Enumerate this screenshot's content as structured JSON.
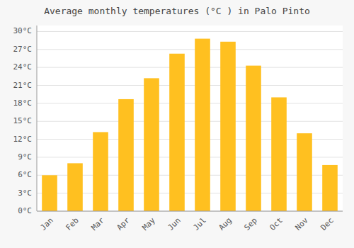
{
  "chart_data": {
    "type": "bar",
    "title": "Average monthly temperatures (°C ) in Palo Pinto",
    "categories": [
      "Jan",
      "Feb",
      "Mar",
      "Apr",
      "May",
      "Jun",
      "Jul",
      "Aug",
      "Sep",
      "Oct",
      "Nov",
      "Dec"
    ],
    "values": [
      6.0,
      8.0,
      13.2,
      18.7,
      22.2,
      26.3,
      28.8,
      28.3,
      24.3,
      19.0,
      13.0,
      7.7
    ],
    "color": "#FFC020",
    "ylim": [
      0,
      31
    ],
    "yticks": [
      {
        "value": 0,
        "label": "0°C"
      },
      {
        "value": 3,
        "label": "3°C"
      },
      {
        "value": 6,
        "label": "6°C"
      },
      {
        "value": 9,
        "label": "9°C"
      },
      {
        "value": 12,
        "label": "12°C"
      },
      {
        "value": 15,
        "label": "15°C"
      },
      {
        "value": 18,
        "label": "18°C"
      },
      {
        "value": 21,
        "label": "21°C"
      },
      {
        "value": 24,
        "label": "24°C"
      },
      {
        "value": 27,
        "label": "27°C"
      },
      {
        "value": 30,
        "label": "30°C"
      }
    ],
    "grid": true
  }
}
